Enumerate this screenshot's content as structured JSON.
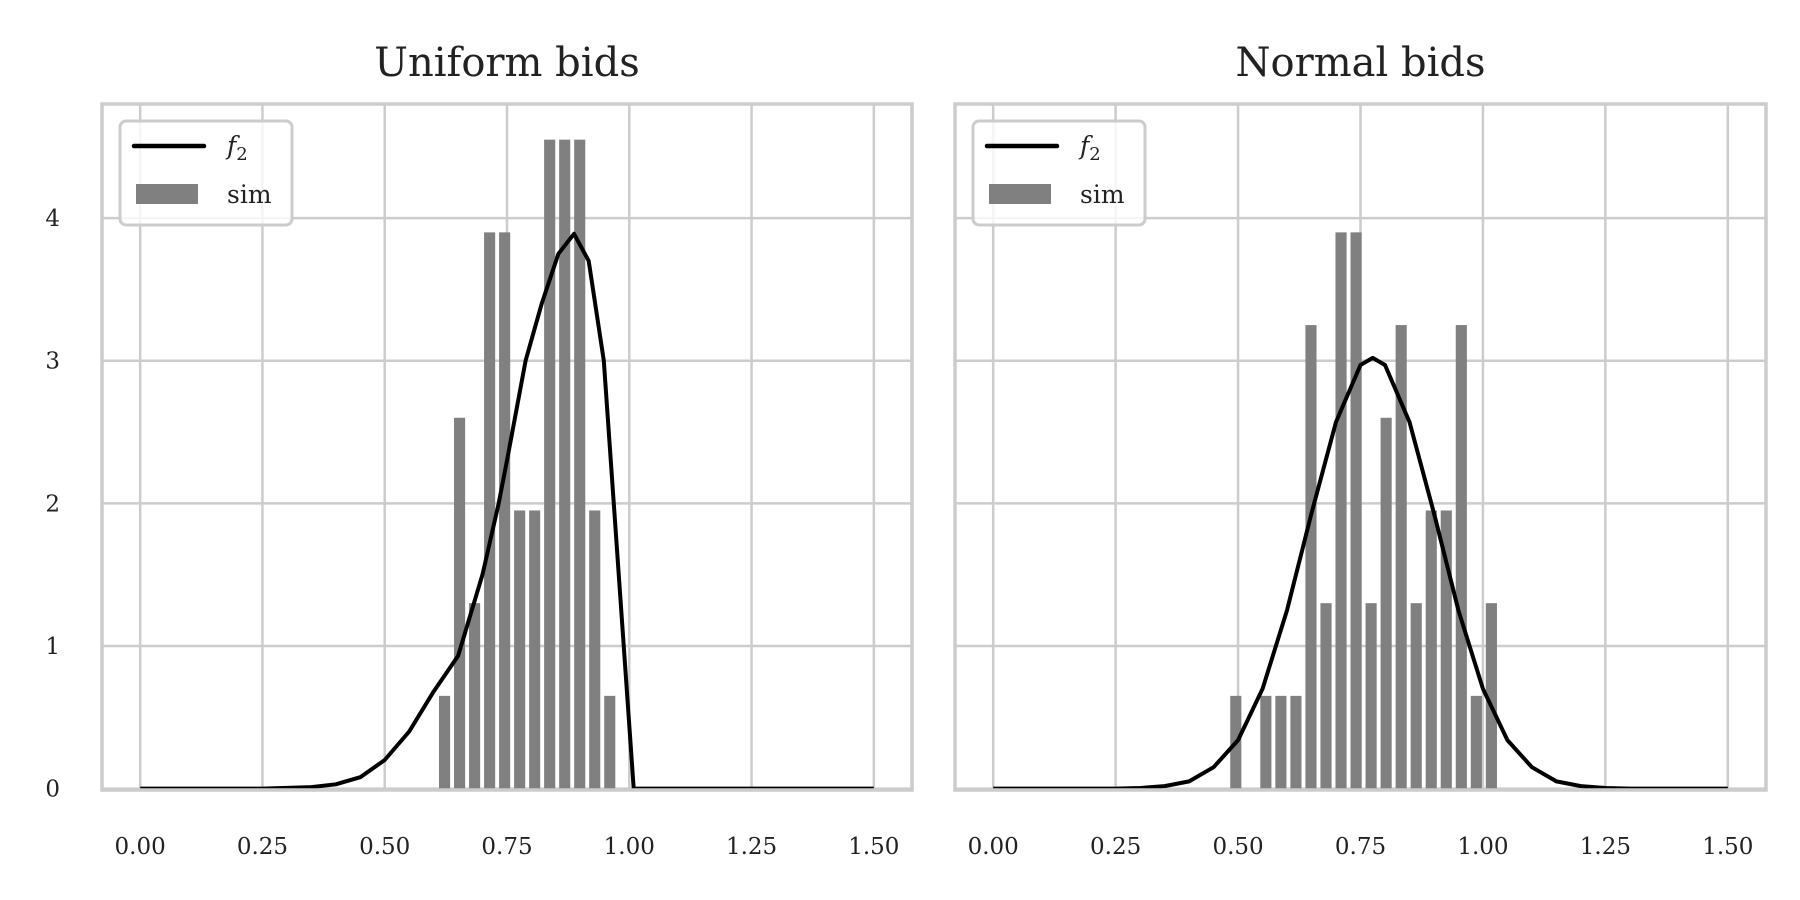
{
  "chart_data": [
    {
      "type": "bar",
      "title": "Uniform bids",
      "xlabel": "",
      "ylabel": "",
      "xlim": [
        -0.078,
        1.578
      ],
      "ylim": [
        -0.01,
        4.8
      ],
      "xticks": [
        0.0,
        0.25,
        0.5,
        0.75,
        1.0,
        1.25,
        1.5
      ],
      "xtick_labels": [
        "0.00",
        "0.25",
        "0.50",
        "0.75",
        "1.00",
        "1.25",
        "1.50"
      ],
      "yticks": [
        0,
        1,
        2,
        3,
        4
      ],
      "ytick_labels": [
        "0",
        "1",
        "2",
        "3",
        "4"
      ],
      "grid": true,
      "legend": {
        "placement": "top-left",
        "entries": [
          "f2",
          "sim"
        ]
      },
      "histogram": {
        "name": "sim",
        "color": "#808080",
        "bin_start": 0.611,
        "bin_width": 0.0307,
        "values": [
          0.65,
          2.6,
          1.3,
          3.9,
          3.9,
          1.95,
          1.95,
          4.55,
          4.55,
          4.55,
          1.95,
          0.65
        ]
      },
      "line": {
        "name": "f2",
        "color": "#000000",
        "points": [
          [
            0,
            0
          ],
          [
            0.25,
            0
          ],
          [
            0.35,
            0.01
          ],
          [
            0.4,
            0.03
          ],
          [
            0.45,
            0.08
          ],
          [
            0.5,
            0.2
          ],
          [
            0.55,
            0.4
          ],
          [
            0.6,
            0.68
          ],
          [
            0.65,
            0.93
          ],
          [
            0.7,
            1.5
          ],
          [
            0.733,
            2.0
          ],
          [
            0.75,
            2.3
          ],
          [
            0.788,
            3.0
          ],
          [
            0.821,
            3.4
          ],
          [
            0.855,
            3.75
          ],
          [
            0.887,
            3.89
          ],
          [
            0.917,
            3.7
          ],
          [
            0.948,
            3.0
          ],
          [
            1.009,
            0
          ],
          [
            1.5,
            0
          ]
        ]
      }
    },
    {
      "type": "bar",
      "title": "Normal bids",
      "xlabel": "",
      "ylabel": "",
      "xlim": [
        -0.078,
        1.578
      ],
      "ylim": [
        -0.01,
        4.8
      ],
      "xticks": [
        0.0,
        0.25,
        0.5,
        0.75,
        1.0,
        1.25,
        1.5
      ],
      "xtick_labels": [
        "0.00",
        "0.25",
        "0.50",
        "0.75",
        "1.00",
        "1.25",
        "1.50"
      ],
      "yticks": [
        0,
        1,
        2,
        3,
        4
      ],
      "ytick_labels": [],
      "grid": true,
      "legend": {
        "placement": "top-left",
        "entries": [
          "f2",
          "sim"
        ]
      },
      "histogram": {
        "name": "sim",
        "color": "#808080",
        "bin_start": 0.484,
        "bin_width": 0.0307,
        "values": [
          0.65,
          0,
          0.65,
          0.65,
          0.65,
          3.25,
          1.3,
          3.9,
          3.9,
          1.3,
          2.6,
          3.25,
          1.3,
          1.95,
          1.95,
          3.25,
          0.65,
          1.3
        ]
      },
      "line": {
        "name": "f2",
        "color": "#000000",
        "points": [
          [
            0,
            0
          ],
          [
            0.25,
            0
          ],
          [
            0.3,
            0.004
          ],
          [
            0.35,
            0.017
          ],
          [
            0.4,
            0.05
          ],
          [
            0.45,
            0.15
          ],
          [
            0.5,
            0.34
          ],
          [
            0.55,
            0.7
          ],
          [
            0.6,
            1.25
          ],
          [
            0.65,
            1.93
          ],
          [
            0.7,
            2.57
          ],
          [
            0.75,
            2.97
          ],
          [
            0.775,
            3.02
          ],
          [
            0.8,
            2.97
          ],
          [
            0.85,
            2.57
          ],
          [
            0.9,
            1.93
          ],
          [
            0.95,
            1.25
          ],
          [
            1.0,
            0.7
          ],
          [
            1.05,
            0.34
          ],
          [
            1.1,
            0.15
          ],
          [
            1.15,
            0.05
          ],
          [
            1.2,
            0.017
          ],
          [
            1.25,
            0.004
          ],
          [
            1.3,
            0
          ],
          [
            1.5,
            0
          ]
        ]
      }
    }
  ],
  "legend_labels": {
    "line": "f",
    "line_sub": "2",
    "bars": "sim"
  }
}
